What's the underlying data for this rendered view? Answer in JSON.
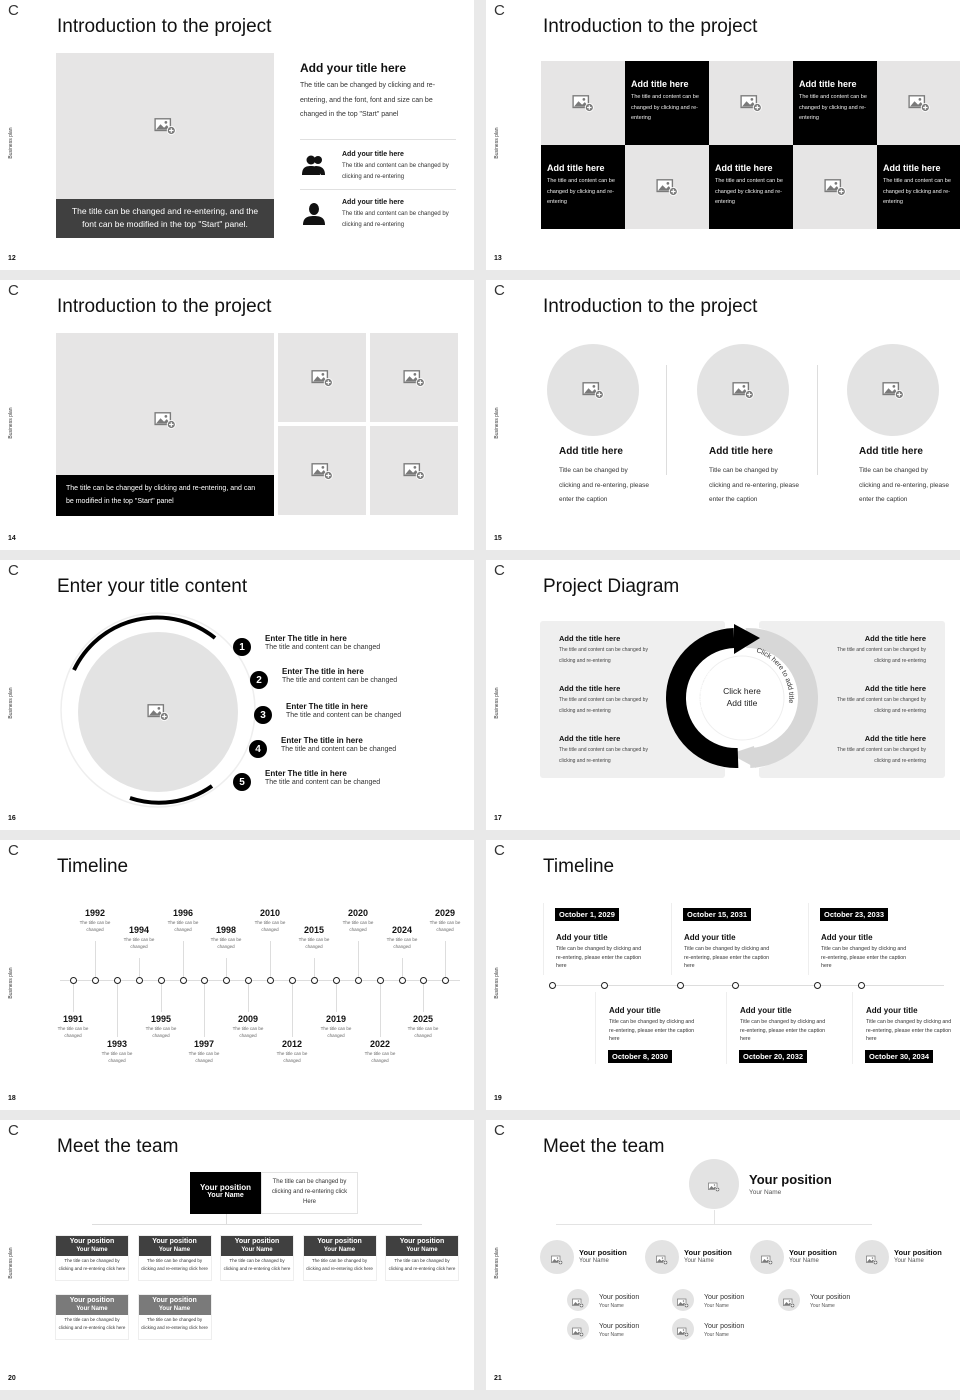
{
  "deck": {
    "logo": "C",
    "side_label": "Business plan"
  },
  "colors": {
    "dark": "#404040",
    "black": "#000000",
    "placeholder": "#e6e5e5",
    "panel": "#efefef",
    "gray_header": "#7a7a7a"
  },
  "s12": {
    "number": "12",
    "title": "Introduction to the project",
    "caption": "The title can be changed and re-entering, and the font can be modified in the top \"Start\" panel.",
    "heading": "Add your title here",
    "desc": "The title can be changed by clicking and re-entering, and the font, font and size can be changed in the top \"Start\" panel",
    "items": [
      {
        "icon": "group-icon",
        "title": "Add your title here",
        "text": "The title and content can be changed by clicking and re-entering"
      },
      {
        "icon": "person-icon",
        "title": "Add your title here",
        "text": "The title and content can be changed by clicking and re-entering"
      }
    ]
  },
  "s13": {
    "number": "13",
    "title": "Introduction to the project",
    "cells": [
      {
        "type": "image"
      },
      {
        "type": "text",
        "title": "Add title here",
        "text": "The title and content can be changed by clicking and re-entering"
      },
      {
        "type": "image"
      },
      {
        "type": "text",
        "title": "Add title here",
        "text": "The title and content can be changed by clicking and re-entering"
      },
      {
        "type": "image"
      },
      {
        "type": "text",
        "title": "Add title here",
        "text": "The title and content can be changed by clicking and re-entering"
      },
      {
        "type": "image"
      },
      {
        "type": "text",
        "title": "Add title here",
        "text": "The title and content can be changed by clicking and re-entering"
      },
      {
        "type": "image"
      },
      {
        "type": "text",
        "title": "Add title here",
        "text": "The title and content can be changed by clicking and re-entering"
      }
    ]
  },
  "s14": {
    "number": "14",
    "title": "Introduction to the project",
    "caption": "The title can be changed by clicking and re-entering, and can be modified in the top \"Start\" panel"
  },
  "s15": {
    "number": "15",
    "title": "Introduction to the project",
    "items": [
      {
        "title": "Add title here",
        "text": "Title can be changed by clicking and re-entering, please enter the caption"
      },
      {
        "title": "Add title here",
        "text": "Title can be changed by clicking and re-entering, please enter the caption"
      },
      {
        "title": "Add title here",
        "text": "Title can be changed by clicking and re-entering, please enter the caption"
      }
    ]
  },
  "s16": {
    "number": "16",
    "title": "Enter your title content",
    "steps": [
      {
        "n": "1",
        "title": "Enter The title in here",
        "text": "The title and content can be changed"
      },
      {
        "n": "2",
        "title": "Enter The title in here",
        "text": "The title and content can be changed"
      },
      {
        "n": "3",
        "title": "Enter The title in here",
        "text": "The title and content can be changed"
      },
      {
        "n": "4",
        "title": "Enter The title in here",
        "text": "The title and content can be changed"
      },
      {
        "n": "5",
        "title": "Enter The title in here",
        "text": "The title and content can be changed"
      }
    ]
  },
  "s17": {
    "number": "17",
    "title": "Project Diagram",
    "center": [
      "Click here",
      "Add title"
    ],
    "arc_left": "Click here to add title",
    "arc_right": "Click here to add title",
    "left": [
      {
        "title": "Add the title here",
        "text": "The title and content can be changed by clicking and re-entering"
      },
      {
        "title": "Add the title here",
        "text": "The title and content can be changed by clicking and re-entering"
      },
      {
        "title": "Add the title here",
        "text": "The title and content can be changed by clicking and re-entering"
      }
    ],
    "right": [
      {
        "title": "Add the title here",
        "text": "The title and content can be changed by clicking and re-entering"
      },
      {
        "title": "Add the title here",
        "text": "The title and content can be changed by clicking and re-entering"
      },
      {
        "title": "Add the title here",
        "text": "The title and content can be changed by clicking and re-entering"
      }
    ]
  },
  "s18": {
    "number": "18",
    "title": "Timeline",
    "events": [
      {
        "year": "1991",
        "text": "The title can be changed"
      },
      {
        "year": "1992",
        "text": "The title can be changed"
      },
      {
        "year": "1993",
        "text": "The title can be changed"
      },
      {
        "year": "1994",
        "text": "The title can be changed"
      },
      {
        "year": "1995",
        "text": "The title can be changed"
      },
      {
        "year": "1996",
        "text": "The title can be changed"
      },
      {
        "year": "1997",
        "text": "The title can be changed"
      },
      {
        "year": "1998",
        "text": "The title can be changed"
      },
      {
        "year": "2009",
        "text": "The title can be changed"
      },
      {
        "year": "2010",
        "text": "The title can be changed"
      },
      {
        "year": "2012",
        "text": "The title can be changed"
      },
      {
        "year": "2015",
        "text": "The title can be changed"
      },
      {
        "year": "2019",
        "text": "The title can be changed"
      },
      {
        "year": "2020",
        "text": "The title can be changed"
      },
      {
        "year": "2022",
        "text": "The title can be changed"
      },
      {
        "year": "2024",
        "text": "The title can be changed"
      },
      {
        "year": "2025",
        "text": "The title can be changed"
      },
      {
        "year": "2029",
        "text": "The title can be changed"
      }
    ]
  },
  "s19": {
    "number": "19",
    "title": "Timeline",
    "events": [
      {
        "date": "October 1, 2029",
        "title": "Add your title",
        "text": "Title can be changed by clicking and re-entering, please enter the caption here"
      },
      {
        "date": "October 8, 2030",
        "title": "Add your title",
        "text": "Title can be changed by clicking and re-entering, please enter the caption here"
      },
      {
        "date": "October 15, 2031",
        "title": "Add your title",
        "text": "Title can be changed by clicking and re-entering, please enter the caption here"
      },
      {
        "date": "October 20, 2032",
        "title": "Add your title",
        "text": "Title can be changed by clicking and re-entering, please enter the caption here"
      },
      {
        "date": "October 23, 2033",
        "title": "Add your title",
        "text": "Title can be changed by clicking and re-entering, please enter the caption here"
      },
      {
        "date": "October 30, 2034",
        "title": "Add your title",
        "text": "Title can be changed by clicking and re-entering, please enter the caption here"
      }
    ]
  },
  "s20": {
    "number": "20",
    "title": "Meet the team",
    "lead": {
      "position": "Your position",
      "name": "Your Name",
      "text": "The title can be changed by clicking and re-entering click Here"
    },
    "members": [
      {
        "position": "Your position",
        "name": "Your Name",
        "text": "The title can be changed by clicking and re-entering click here"
      },
      {
        "position": "Your position",
        "name": "Your Name",
        "text": "The title can be changed by clicking and re-entering click here"
      },
      {
        "position": "Your position",
        "name": "Your Name",
        "text": "The title can be changed by clicking and re-entering click here"
      },
      {
        "position": "Your position",
        "name": "Your Name",
        "text": "The title can be changed by clicking and re-entering click here"
      },
      {
        "position": "Your position",
        "name": "Your Name",
        "text": "The title can be changed by clicking and re-entering click here"
      },
      {
        "position": "Your position",
        "name": "Your Name",
        "text": "The title can be changed by clicking and re-entering click here"
      },
      {
        "position": "Your position",
        "name": "Your Name",
        "text": "The title can be changed by clicking and re-entering click here"
      }
    ]
  },
  "s21": {
    "number": "21",
    "title": "Meet the team",
    "lead": {
      "position": "Your position",
      "name": "Your Name"
    },
    "managers": [
      {
        "position": "Your position",
        "name": "Your Name"
      },
      {
        "position": "Your position",
        "name": "Your Name"
      },
      {
        "position": "Your position",
        "name": "Your Name"
      },
      {
        "position": "Your position",
        "name": "Your Name"
      }
    ],
    "staff": [
      {
        "position": "Your position",
        "name": "Your Name"
      },
      {
        "position": "Your position",
        "name": "Your Name"
      },
      {
        "position": "Your position",
        "name": "Your Name"
      },
      {
        "position": "Your position",
        "name": "Your Name"
      },
      {
        "position": "Your position",
        "name": "Your Name"
      }
    ]
  }
}
